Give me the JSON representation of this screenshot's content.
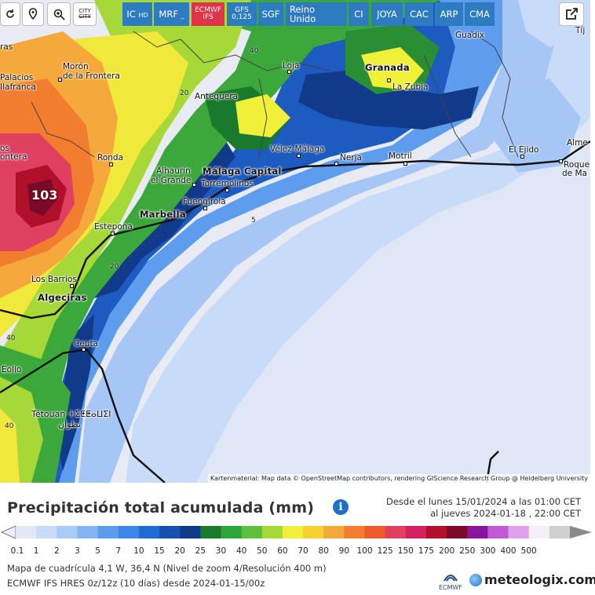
{
  "toolbar": {
    "buttons": [
      "IC",
      "MRF",
      "ECMWF",
      "GFS",
      "SGF",
      "Reino Unido",
      "CI",
      "JOYA",
      "CAC",
      "ARP",
      "CMA"
    ],
    "ic_sub": "HD",
    "mrf_sub": "_",
    "ecmwf_sub": "IFS",
    "gfs_sub": "0,125",
    "city_label_top": "CITY",
    "city_label_bottom": "CITY",
    "active_model": "ECMWF"
  },
  "map": {
    "max_value_label": "103",
    "attribution": "Kartenmaterial: Map data © OpenStreetMap contributors, rendering GIScience Research Group @ Heidelberg University",
    "places": {
      "ras": "ras",
      "palacios": "Palacios",
      "villafranca": "Ilafranca",
      "moron": "Morón",
      "moron2": "de la Frontera",
      "loja": "Loja",
      "granada": "Granada",
      "la_zubia": "La Zubia",
      "guadix": "Guadix",
      "tij": "Tíj",
      "antequera": "Antequera",
      "os": "os",
      "ontera": "ontera",
      "ronda": "Ronda",
      "alhaurin": "Alhaurín",
      "alhaurin2": "el Grande",
      "malaga": "Málaga Capital",
      "torremolinos": "Torremolinos",
      "velez": "Vélez-Málaga",
      "nerja": "Nerja",
      "motril": "Motril",
      "el_ejido": "El Ejido",
      "almeria": "Alme",
      "roquetas": "Roque",
      "roquetas2": "de Ma",
      "fuengirola": "Fuengirola",
      "marbella": "Marbella",
      "estepona": "Estepona",
      "los_barrios": "Los Barrios",
      "algeciras": "Algeciras",
      "ceuta": "Ceuta",
      "tetouan": "Tétouan ⵜⵉⵟⵟⴰⵡⵉⵏ",
      "tetouan_ar": "تطوان",
      "eolio": "Eolio",
      "cont40a": "40",
      "cont20a": "20",
      "cont40b": "40",
      "cont20b": "20",
      "cont40c": "40",
      "cont5": "5"
    }
  },
  "legend": {
    "title": "Precipitación total acumulada (mm)",
    "info": "i",
    "period_line1": "Desde el lunes 15/01/2024 a  las 01:00 CET",
    "period_line2": "al jueves 2024-01-18 ,  22:00 CET",
    "ticks": [
      "0.1",
      "1",
      "2",
      "3",
      "5",
      "7",
      "10",
      "15",
      "20",
      "25",
      "30",
      "40",
      "50",
      "60",
      "70",
      "80",
      "90",
      "100",
      "125",
      "150",
      "175",
      "200",
      "250",
      "300",
      "400",
      "500"
    ],
    "colors": [
      "#e4e8f6",
      "#c8dcfa",
      "#a9cbf8",
      "#84b4f2",
      "#5b9ded",
      "#3c86e8",
      "#1e6bd6",
      "#1850b0",
      "#0f3a88",
      "#1a7a2c",
      "#2aa63a",
      "#5fc040",
      "#a6d838",
      "#f0f039",
      "#f4d12e",
      "#f5a93a",
      "#f27d2e",
      "#ee5a2a",
      "#e04060",
      "#d42060",
      "#b0102a",
      "#7a0a28",
      "#8a14a0",
      "#c25ad8",
      "#e0a0ee",
      "#f5f0f8",
      "#d0d0d0"
    ],
    "footer_line1": "Mapa de cuadrícula 4,1 W, 36,4 N  (Nivel de zoom 4/Resolución 400 m)",
    "footer_line2": "ECMWF IFS HRES 0z/12z  (10 días)  desde 2024-01-15/00z",
    "ecmwf_logo_text": "ECMWF",
    "brand": "meteologix.com"
  }
}
